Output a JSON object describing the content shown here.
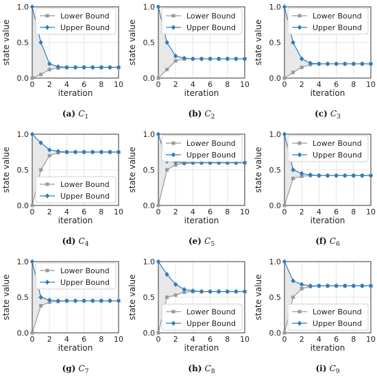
{
  "colors": {
    "lower": "#999999",
    "upper": "#2f7bbd",
    "fill": "#e8e8e8",
    "grid": "#e5e5e5",
    "frame": "#333333"
  },
  "chart_data": [
    {
      "id": "a",
      "type": "line",
      "caption_label": "(a)",
      "caption_sym": "C",
      "caption_sub": "1",
      "xlabel": "iteration",
      "ylabel": "state value",
      "xlim": [
        0,
        10
      ],
      "ylim": [
        0,
        1
      ],
      "x_ticks": [
        "0",
        "2",
        "4",
        "6",
        "8",
        "10"
      ],
      "y_ticks": [
        "0.0",
        "0.5",
        "1.0"
      ],
      "legend_position": "top-right",
      "x": [
        0,
        1,
        2,
        3,
        4,
        5,
        6,
        7,
        8,
        9,
        10
      ],
      "series": [
        {
          "name": "Lower Bound",
          "marker": "square",
          "values": [
            0,
            0.05,
            0.12,
            0.14,
            0.15,
            0.15,
            0.15,
            0.15,
            0.15,
            0.15,
            0.15
          ]
        },
        {
          "name": "Upper Bound",
          "marker": "diamond",
          "values": [
            1,
            0.5,
            0.2,
            0.16,
            0.15,
            0.15,
            0.15,
            0.15,
            0.15,
            0.15,
            0.15
          ]
        }
      ]
    },
    {
      "id": "b",
      "type": "line",
      "caption_label": "(b)",
      "caption_sym": "C",
      "caption_sub": "2",
      "xlabel": "iteration",
      "ylabel": "state value",
      "xlim": [
        0,
        10
      ],
      "ylim": [
        0,
        1
      ],
      "x_ticks": [
        "0",
        "2",
        "4",
        "6",
        "8",
        "10"
      ],
      "y_ticks": [
        "0.0",
        "0.5",
        "1.0"
      ],
      "legend_position": "top-right",
      "x": [
        0,
        1,
        2,
        3,
        4,
        5,
        6,
        7,
        8,
        9,
        10
      ],
      "series": [
        {
          "name": "Lower Bound",
          "marker": "square",
          "values": [
            0,
            0.12,
            0.24,
            0.27,
            0.27,
            0.27,
            0.27,
            0.27,
            0.27,
            0.27,
            0.27
          ]
        },
        {
          "name": "Upper Bound",
          "marker": "diamond",
          "values": [
            1,
            0.5,
            0.31,
            0.28,
            0.27,
            0.27,
            0.27,
            0.27,
            0.27,
            0.27,
            0.27
          ]
        }
      ]
    },
    {
      "id": "c",
      "type": "line",
      "caption_label": "(c)",
      "caption_sym": "C",
      "caption_sub": "3",
      "xlabel": "iteration",
      "ylabel": "state value",
      "xlim": [
        0,
        10
      ],
      "ylim": [
        0,
        1
      ],
      "x_ticks": [
        "0",
        "2",
        "4",
        "6",
        "8",
        "10"
      ],
      "y_ticks": [
        "0.0",
        "0.5",
        "1.0"
      ],
      "legend_position": "top-right",
      "x": [
        0,
        1,
        2,
        3,
        4,
        5,
        6,
        7,
        8,
        9,
        10
      ],
      "series": [
        {
          "name": "Lower Bound",
          "marker": "square",
          "values": [
            0,
            0.08,
            0.15,
            0.19,
            0.2,
            0.2,
            0.2,
            0.2,
            0.2,
            0.2,
            0.2
          ]
        },
        {
          "name": "Upper Bound",
          "marker": "diamond",
          "values": [
            1,
            0.5,
            0.27,
            0.21,
            0.2,
            0.2,
            0.2,
            0.2,
            0.2,
            0.2,
            0.2
          ]
        }
      ]
    },
    {
      "id": "d",
      "type": "line",
      "caption_label": "(d)",
      "caption_sym": "C",
      "caption_sub": "4",
      "xlabel": "iteration",
      "ylabel": "state value",
      "xlim": [
        0,
        10
      ],
      "ylim": [
        0,
        1
      ],
      "x_ticks": [
        "0",
        "2",
        "4",
        "6",
        "8",
        "10"
      ],
      "y_ticks": [
        "0.0",
        "0.5",
        "1.0"
      ],
      "legend_position": "bottom-right",
      "x": [
        0,
        1,
        2,
        3,
        4,
        5,
        6,
        7,
        8,
        9,
        10
      ],
      "series": [
        {
          "name": "Lower Bound",
          "marker": "square",
          "values": [
            0,
            0.5,
            0.7,
            0.74,
            0.75,
            0.75,
            0.75,
            0.75,
            0.75,
            0.75,
            0.75
          ]
        },
        {
          "name": "Upper Bound",
          "marker": "diamond",
          "values": [
            1,
            0.88,
            0.78,
            0.76,
            0.75,
            0.75,
            0.75,
            0.75,
            0.75,
            0.75,
            0.75
          ]
        }
      ]
    },
    {
      "id": "e",
      "type": "line",
      "caption_label": "(e)",
      "caption_sym": "C",
      "caption_sub": "5",
      "xlabel": "iteration",
      "ylabel": "state value",
      "xlim": [
        0,
        10
      ],
      "ylim": [
        0,
        1
      ],
      "x_ticks": [
        "0",
        "2",
        "4",
        "6",
        "8",
        "10"
      ],
      "y_ticks": [
        "0.0",
        "0.5",
        "1.0"
      ],
      "legend_position": "top-right",
      "x": [
        0,
        1,
        2,
        3,
        4,
        5,
        6,
        7,
        8,
        9,
        10
      ],
      "series": [
        {
          "name": "Lower Bound",
          "marker": "square",
          "values": [
            0,
            0.5,
            0.57,
            0.59,
            0.6,
            0.6,
            0.6,
            0.6,
            0.6,
            0.6,
            0.6
          ]
        },
        {
          "name": "Upper Bound",
          "marker": "diamond",
          "values": [
            1,
            0.62,
            0.61,
            0.6,
            0.6,
            0.6,
            0.6,
            0.6,
            0.6,
            0.6,
            0.6
          ]
        }
      ]
    },
    {
      "id": "f",
      "type": "line",
      "caption_label": "(f)",
      "caption_sym": "C",
      "caption_sub": "6",
      "xlabel": "iteration",
      "ylabel": "state value",
      "xlim": [
        0,
        10
      ],
      "ylim": [
        0,
        1
      ],
      "x_ticks": [
        "0",
        "2",
        "4",
        "6",
        "8",
        "10"
      ],
      "y_ticks": [
        "0.0",
        "0.5",
        "1.0"
      ],
      "legend_position": "top-right",
      "x": [
        0,
        1,
        2,
        3,
        4,
        5,
        6,
        7,
        8,
        9,
        10
      ],
      "series": [
        {
          "name": "Lower Bound",
          "marker": "square",
          "values": [
            0,
            0.38,
            0.41,
            0.42,
            0.42,
            0.42,
            0.42,
            0.42,
            0.42,
            0.42,
            0.42
          ]
        },
        {
          "name": "Upper Bound",
          "marker": "diamond",
          "values": [
            1,
            0.5,
            0.45,
            0.43,
            0.42,
            0.42,
            0.42,
            0.42,
            0.42,
            0.42,
            0.42
          ]
        }
      ]
    },
    {
      "id": "g",
      "type": "line",
      "caption_label": "(g)",
      "caption_sym": "C",
      "caption_sub": "7",
      "xlabel": "iteration",
      "ylabel": "state value",
      "xlim": [
        0,
        10
      ],
      "ylim": [
        0,
        1
      ],
      "x_ticks": [
        "0",
        "2",
        "4",
        "6",
        "8",
        "10"
      ],
      "y_ticks": [
        "0.0",
        "0.5",
        "1.0"
      ],
      "legend_position": "top-right",
      "x": [
        0,
        1,
        2,
        3,
        4,
        5,
        6,
        7,
        8,
        9,
        10
      ],
      "series": [
        {
          "name": "Lower Bound",
          "marker": "square",
          "values": [
            0,
            0.38,
            0.43,
            0.44,
            0.45,
            0.45,
            0.45,
            0.45,
            0.45,
            0.45,
            0.45
          ]
        },
        {
          "name": "Upper Bound",
          "marker": "diamond",
          "values": [
            1,
            0.5,
            0.46,
            0.45,
            0.45,
            0.45,
            0.45,
            0.45,
            0.45,
            0.45,
            0.45
          ]
        }
      ]
    },
    {
      "id": "h",
      "type": "line",
      "caption_label": "(h)",
      "caption_sym": "C",
      "caption_sub": "8",
      "xlabel": "iteration",
      "ylabel": "state value",
      "xlim": [
        0,
        10
      ],
      "ylim": [
        0,
        1
      ],
      "x_ticks": [
        "0",
        "2",
        "4",
        "6",
        "8",
        "10"
      ],
      "y_ticks": [
        "0.0",
        "0.5",
        "1.0"
      ],
      "legend_position": "bottom-right",
      "x": [
        0,
        1,
        2,
        3,
        4,
        5,
        6,
        7,
        8,
        9,
        10
      ],
      "series": [
        {
          "name": "Lower Bound",
          "marker": "square",
          "values": [
            0,
            0.5,
            0.53,
            0.57,
            0.58,
            0.58,
            0.58,
            0.58,
            0.58,
            0.58,
            0.58
          ]
        },
        {
          "name": "Upper Bound",
          "marker": "diamond",
          "values": [
            1,
            0.82,
            0.68,
            0.61,
            0.59,
            0.58,
            0.58,
            0.58,
            0.58,
            0.58,
            0.58
          ]
        }
      ]
    },
    {
      "id": "i",
      "type": "line",
      "caption_label": "(i)",
      "caption_sym": "C",
      "caption_sub": "9",
      "xlabel": "iteration",
      "ylabel": "state value",
      "xlim": [
        0,
        10
      ],
      "ylim": [
        0,
        1
      ],
      "x_ticks": [
        "0",
        "2",
        "4",
        "6",
        "8",
        "10"
      ],
      "y_ticks": [
        "0.0",
        "0.5",
        "1.0"
      ],
      "legend_position": "bottom-right",
      "x": [
        0,
        1,
        2,
        3,
        4,
        5,
        6,
        7,
        8,
        9,
        10
      ],
      "series": [
        {
          "name": "Lower Bound",
          "marker": "square",
          "values": [
            0,
            0.5,
            0.62,
            0.65,
            0.66,
            0.66,
            0.66,
            0.66,
            0.66,
            0.66,
            0.66
          ]
        },
        {
          "name": "Upper Bound",
          "marker": "diamond",
          "values": [
            1,
            0.73,
            0.68,
            0.66,
            0.66,
            0.66,
            0.66,
            0.66,
            0.66,
            0.66,
            0.66
          ]
        }
      ]
    }
  ]
}
